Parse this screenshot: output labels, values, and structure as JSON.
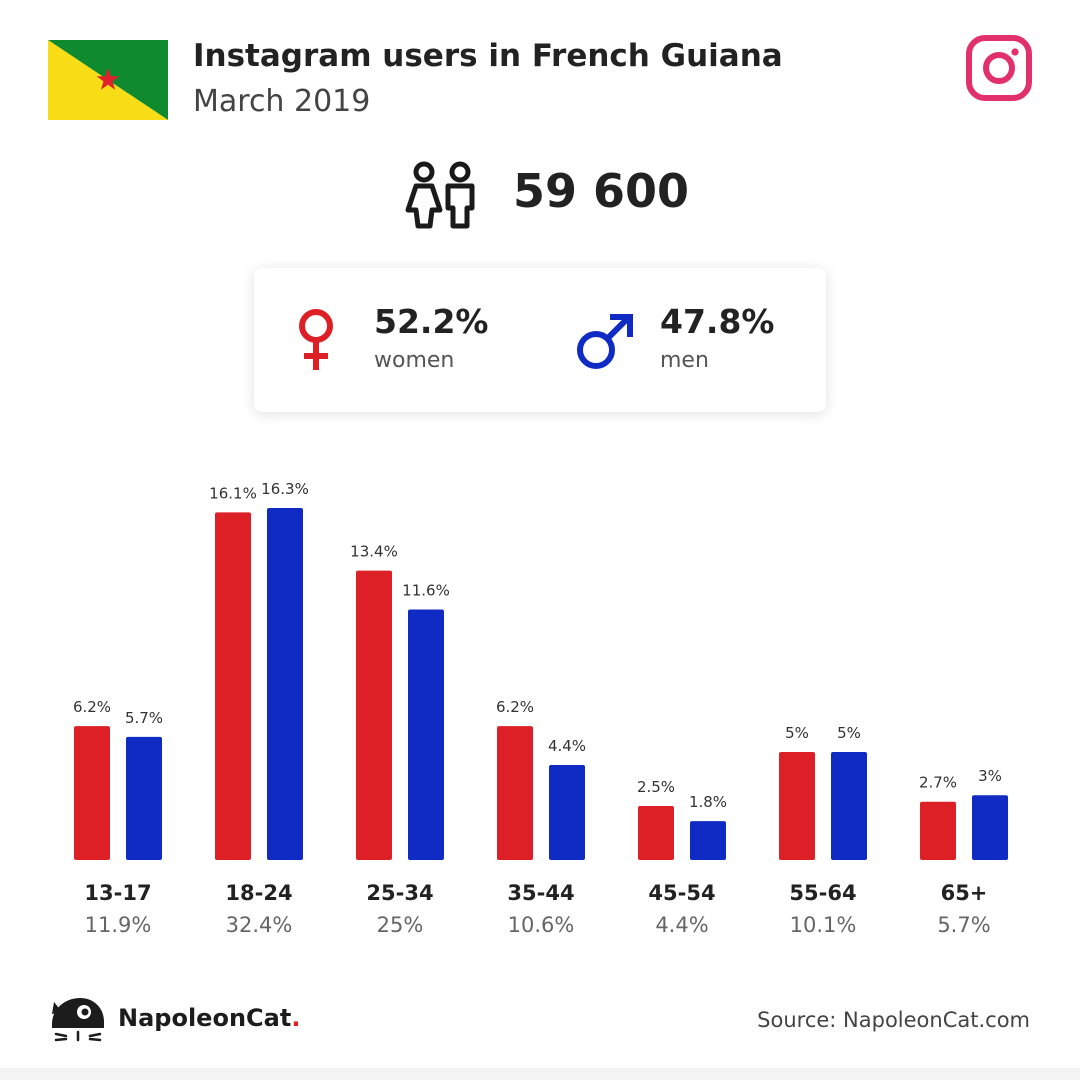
{
  "header": {
    "title": "Instagram users in French Guiana",
    "subtitle": "March 2019"
  },
  "total_users": "59 600",
  "gender": {
    "women_pct": "52.2%",
    "women_label": "women",
    "men_pct": "47.8%",
    "men_label": "men"
  },
  "colors": {
    "women": "#dd2026",
    "men": "#0f2bc4",
    "instagram": "#e1306c"
  },
  "icons": {
    "flag": "french-guiana-flag-icon",
    "platform": "instagram-icon",
    "users": "users-icon",
    "female": "female-symbol-icon",
    "male": "male-symbol-icon",
    "brand": "napoleoncat-logo-icon"
  },
  "chart_data": {
    "type": "bar",
    "categories": [
      "13-17",
      "18-24",
      "25-34",
      "35-44",
      "45-54",
      "55-64",
      "65+"
    ],
    "series": [
      {
        "name": "women",
        "values": [
          6.2,
          16.1,
          13.4,
          6.2,
          2.5,
          5,
          2.7
        ],
        "labels": [
          "6.2%",
          "16.1%",
          "13.4%",
          "6.2%",
          "2.5%",
          "5%",
          "2.7%"
        ]
      },
      {
        "name": "men",
        "values": [
          5.7,
          16.3,
          11.6,
          4.4,
          1.8,
          5,
          3
        ],
        "labels": [
          "5.7%",
          "16.3%",
          "11.6%",
          "4.4%",
          "1.8%",
          "5%",
          "3%"
        ]
      }
    ],
    "group_totals": [
      "11.9%",
      "32.4%",
      "25%",
      "10.6%",
      "4.4%",
      "10.1%",
      "5.7%"
    ],
    "ylim": [
      0,
      16.3
    ]
  },
  "footer": {
    "brand_name": "NapoleonCat",
    "brand_dot": ".",
    "source": "Source: NapoleonCat.com"
  }
}
